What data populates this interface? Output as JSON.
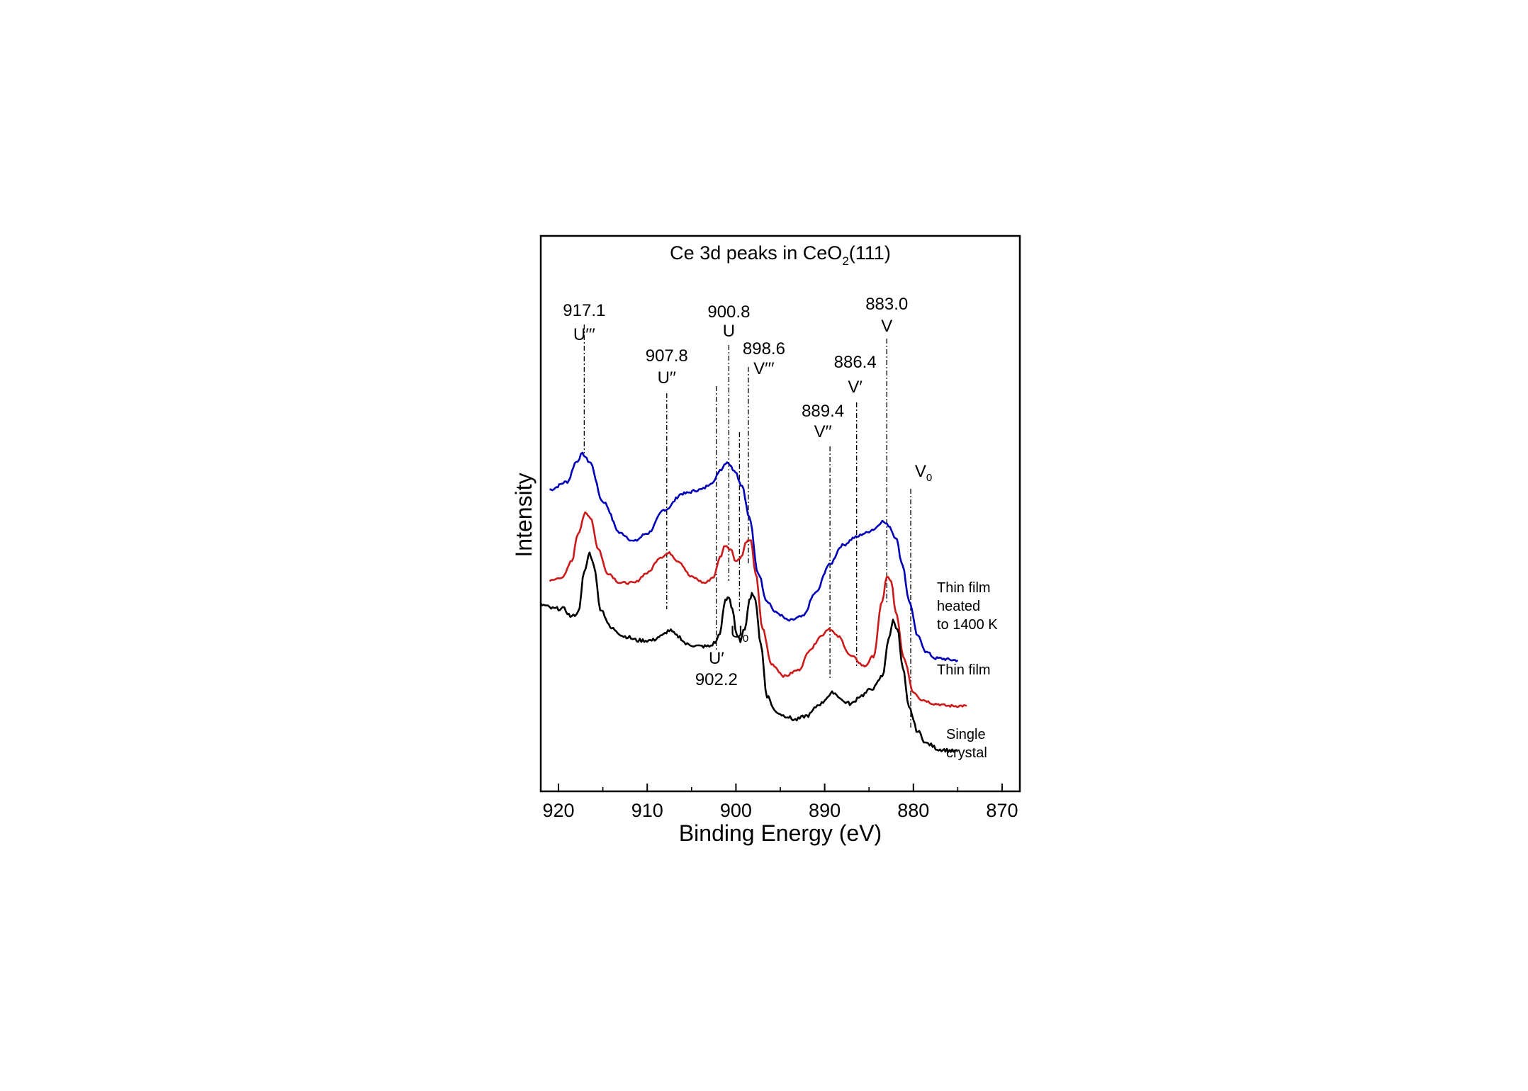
{
  "chart_data": {
    "type": "line",
    "title": "Ce 3d peaks in CeO",
    "title_sub": "2",
    "title_suffix": "(111)",
    "xlabel": "Binding Energy (eV)",
    "ylabel": "Intensity",
    "xlim": [
      922,
      868
    ],
    "x_reversed": true,
    "y_ticks_visible": false,
    "grid": false,
    "x_ticks": [
      920,
      910,
      900,
      890,
      880,
      870
    ],
    "x_tick_labels": [
      "920",
      "910",
      "900",
      "890",
      "880",
      "870"
    ],
    "ylim": [
      0,
      100
    ],
    "series": [
      {
        "name": "Thin film heated to 1400 K",
        "label_lines": [
          "Thin film",
          "heated",
          "to 1400 K"
        ],
        "color": "#0000b8",
        "points": [
          [
            921,
            73
          ],
          [
            919,
            75
          ],
          [
            918.0,
            80
          ],
          [
            917.3,
            82
          ],
          [
            916.5,
            80
          ],
          [
            915,
            70
          ],
          [
            913,
            62
          ],
          [
            911.5,
            60
          ],
          [
            910,
            62
          ],
          [
            908,
            68
          ],
          [
            906,
            72
          ],
          [
            904,
            73
          ],
          [
            902.5,
            75
          ],
          [
            901.8,
            78
          ],
          [
            901.0,
            80
          ],
          [
            900.2,
            78
          ],
          [
            899.3,
            74
          ],
          [
            898.5,
            66
          ],
          [
            897.5,
            52
          ],
          [
            896.5,
            45
          ],
          [
            895.5,
            42
          ],
          [
            894,
            40
          ],
          [
            892.5,
            41
          ],
          [
            891,
            47
          ],
          [
            889.5,
            54
          ],
          [
            888,
            59
          ],
          [
            886.5,
            61
          ],
          [
            885.5,
            62
          ],
          [
            884.5,
            63
          ],
          [
            883.5,
            65
          ],
          [
            882.8,
            64
          ],
          [
            882.0,
            61
          ],
          [
            881.2,
            54
          ],
          [
            880.5,
            45
          ],
          [
            879.5,
            36
          ],
          [
            878.5,
            32
          ],
          [
            877.5,
            30.5
          ],
          [
            875,
            30
          ]
        ]
      },
      {
        "name": "Thin film",
        "label_lines": [
          "Thin film"
        ],
        "color": "#cc1a1a",
        "points": [
          [
            921,
            50
          ],
          [
            919.5,
            51
          ],
          [
            918.5,
            55
          ],
          [
            917.8,
            62
          ],
          [
            917.0,
            67
          ],
          [
            916.4,
            66
          ],
          [
            915.5,
            58
          ],
          [
            914.5,
            52
          ],
          [
            913,
            49.5
          ],
          [
            911.5,
            49.5
          ],
          [
            910,
            52
          ],
          [
            908.5,
            56
          ],
          [
            907.5,
            57
          ],
          [
            906.5,
            55
          ],
          [
            905,
            51
          ],
          [
            903.5,
            49.5
          ],
          [
            902.5,
            51
          ],
          [
            901.8,
            56
          ],
          [
            901.2,
            59
          ],
          [
            900.6,
            58
          ],
          [
            900.0,
            55
          ],
          [
            899.4,
            56
          ],
          [
            898.8,
            60
          ],
          [
            898.3,
            60
          ],
          [
            897.8,
            52
          ],
          [
            897.0,
            38
          ],
          [
            896.0,
            29
          ],
          [
            894.5,
            26
          ],
          [
            893,
            27.5
          ],
          [
            891.5,
            33
          ],
          [
            890.5,
            36
          ],
          [
            889.5,
            38
          ],
          [
            888.5,
            36
          ],
          [
            887,
            31
          ],
          [
            885.5,
            28.5
          ],
          [
            884.5,
            31
          ],
          [
            883.5,
            45
          ],
          [
            883.0,
            51
          ],
          [
            882.5,
            50
          ],
          [
            882.0,
            42
          ],
          [
            881.0,
            30
          ],
          [
            880.0,
            22
          ],
          [
            879,
            20
          ],
          [
            877.5,
            19
          ],
          [
            876,
            18.5
          ],
          [
            874,
            18.5
          ]
        ]
      },
      {
        "name": "Single crystal",
        "label_lines": [
          "Single",
          "crystal"
        ],
        "color": "#000000",
        "points": [
          [
            922,
            44
          ],
          [
            920.5,
            43
          ],
          [
            919.5,
            43
          ],
          [
            918.5,
            41
          ],
          [
            917.8,
            42
          ],
          [
            917.1,
            52
          ],
          [
            916.5,
            57
          ],
          [
            916.0,
            54
          ],
          [
            915.3,
            43
          ],
          [
            914,
            38
          ],
          [
            912.5,
            36
          ],
          [
            911,
            35
          ],
          [
            909.5,
            35
          ],
          [
            908.5,
            36
          ],
          [
            907.5,
            37.5
          ],
          [
            906.5,
            36
          ],
          [
            905.5,
            34
          ],
          [
            904,
            33.5
          ],
          [
            903,
            33.5
          ],
          [
            902.3,
            34.5
          ],
          [
            901.8,
            37
          ],
          [
            901.2,
            45
          ],
          [
            900.8,
            46
          ],
          [
            900.4,
            43
          ],
          [
            899.9,
            36
          ],
          [
            899.5,
            35
          ],
          [
            899.0,
            38
          ],
          [
            898.5,
            45
          ],
          [
            898.2,
            47
          ],
          [
            897.8,
            45
          ],
          [
            897.2,
            34
          ],
          [
            896.5,
            21
          ],
          [
            895.5,
            17
          ],
          [
            894.5,
            16
          ],
          [
            893.3,
            15
          ],
          [
            892,
            16
          ],
          [
            890.5,
            19
          ],
          [
            889.5,
            21
          ],
          [
            889.0,
            22
          ],
          [
            888.5,
            21
          ],
          [
            887.8,
            19.5
          ],
          [
            887.0,
            19
          ],
          [
            886,
            21
          ],
          [
            884.5,
            23
          ],
          [
            883.5,
            26
          ],
          [
            882.8,
            35
          ],
          [
            882.3,
            40
          ],
          [
            881.8,
            38
          ],
          [
            881.2,
            28
          ],
          [
            880.5,
            18
          ],
          [
            879.5,
            12
          ],
          [
            878.5,
            9
          ],
          [
            877,
            7.5
          ],
          [
            875,
            7
          ]
        ]
      }
    ],
    "annotations": [
      {
        "x": 917.1,
        "value": "917.1",
        "symbol": "U′′′"
      },
      {
        "x": 907.8,
        "value": "907.8",
        "symbol": "U′′"
      },
      {
        "x": 900.8,
        "value": "900.8",
        "symbol": "U"
      },
      {
        "x": 898.6,
        "value": "898.6",
        "symbol": "V′′′"
      },
      {
        "x": 889.4,
        "value": "889.4",
        "symbol": "V′′"
      },
      {
        "x": 886.4,
        "value": "886.4",
        "symbol": "V′"
      },
      {
        "x": 883.0,
        "value": "883.0",
        "symbol": "V"
      },
      {
        "x": 902.2,
        "value": "902.2",
        "symbol": "U′"
      },
      {
        "x": 899.6,
        "symbol": "U",
        "sub": "0"
      },
      {
        "x": 880.3,
        "symbol": "V",
        "sub": "0"
      }
    ]
  }
}
